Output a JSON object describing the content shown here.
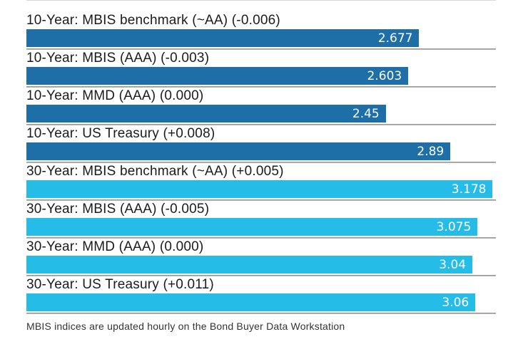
{
  "chart_data": {
    "type": "bar",
    "orientation": "horizontal",
    "title": "",
    "xlabel": "",
    "ylabel": "",
    "xlim": [
      0,
      3.2
    ],
    "grid": false,
    "legend": "none",
    "categories": [
      "10-Year: MBIS benchmark (~AA) (-0.006)",
      "10-Year: MBIS (AAA) (-0.003)",
      "10-Year: MMD (AAA) (0.000)",
      "10-Year: US Treasury (+0.008)",
      "30-Year: MBIS benchmark (~AA) (+0.005)",
      "30-Year: MBIS (AAA) (-0.005)",
      "30-Year: MMD (AAA) (0.000)",
      "30-Year: US Treasury (+0.011)"
    ],
    "values": [
      2.677,
      2.603,
      2.45,
      2.89,
      3.178,
      3.075,
      3.04,
      3.06
    ],
    "value_labels": [
      "2.677",
      "2.603",
      "2.45",
      "2.89",
      "3.178",
      "3.075",
      "3.04",
      "3.06"
    ],
    "changes": [
      "-0.006",
      "-0.003",
      "0.000",
      "+0.008",
      "+0.005",
      "-0.005",
      "0.000",
      "+0.011"
    ],
    "groups": [
      {
        "name": "10-Year",
        "color": "#1E6FA8"
      },
      {
        "name": "30-Year",
        "color": "#25BCE8"
      }
    ],
    "bar_colors": [
      "#1E6FA8",
      "#1E6FA8",
      "#1E6FA8",
      "#1E6FA8",
      "#25BCE8",
      "#25BCE8",
      "#25BCE8",
      "#25BCE8"
    ]
  },
  "footer": {
    "note": "MBIS indices are updated hourly on the Bond Buyer Data Workstation"
  },
  "colors": {
    "background": "#FFFFFF",
    "bar_10_year": "#1E6FA8",
    "bar_30_year": "#25BCE8",
    "separator": "#9E9E9E",
    "label_text": "#1B1B1B",
    "value_text": "#FFFFFF",
    "footer_text": "#333333"
  }
}
